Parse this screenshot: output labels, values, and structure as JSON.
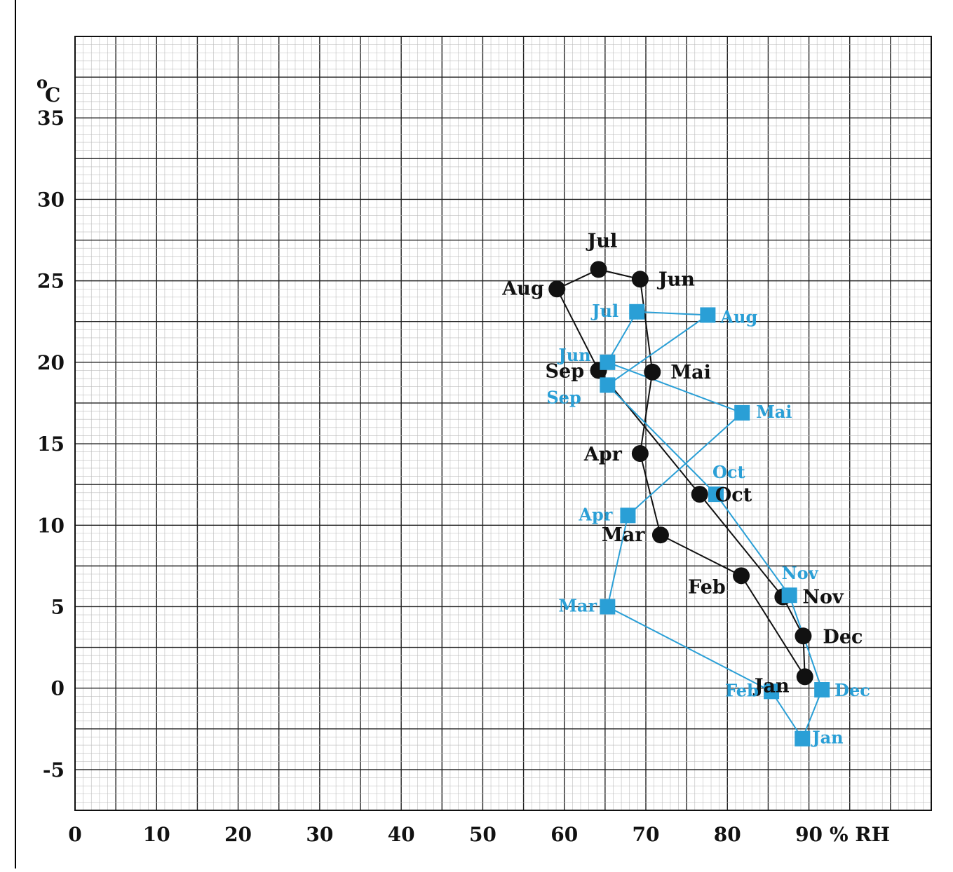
{
  "chart_data": {
    "type": "scatter",
    "title": "",
    "xlabel": "% RH",
    "ylabel": "°C",
    "ylabel_parts": {
      "degree": "o",
      "unit": "C"
    },
    "xlim": [
      0,
      105
    ],
    "ylim": [
      -7.5,
      40
    ],
    "xticks": [
      0,
      10,
      20,
      30,
      40,
      50,
      60,
      70,
      80,
      90
    ],
    "yticks": [
      -5,
      0,
      5,
      10,
      15,
      20,
      25,
      30,
      35
    ],
    "grid": true,
    "legend": "none",
    "series": [
      {
        "color": "#111111",
        "marker": "circle",
        "points": [
          {
            "label": "Jan",
            "x": 89.5,
            "y": 0.7
          },
          {
            "label": "Feb",
            "x": 81.7,
            "y": 6.9
          },
          {
            "label": "Mar",
            "x": 71.8,
            "y": 9.4
          },
          {
            "label": "Apr",
            "x": 69.3,
            "y": 14.4
          },
          {
            "label": "Mai",
            "x": 70.8,
            "y": 19.4
          },
          {
            "label": "Jun",
            "x": 69.3,
            "y": 25.1
          },
          {
            "label": "Jul",
            "x": 64.2,
            "y": 25.7
          },
          {
            "label": "Aug",
            "x": 59.1,
            "y": 24.5
          },
          {
            "label": "Sep",
            "x": 64.2,
            "y": 19.5
          },
          {
            "label": "Oct",
            "x": 76.6,
            "y": 11.9
          },
          {
            "label": "Nov",
            "x": 86.8,
            "y": 5.6
          },
          {
            "label": "Dec",
            "x": 89.3,
            "y": 3.2
          }
        ]
      },
      {
        "color": "#2a9fd6",
        "marker": "square",
        "points": [
          {
            "label": "Jan",
            "x": 89.2,
            "y": -3.1
          },
          {
            "label": "Feb",
            "x": 85.4,
            "y": -0.2
          },
          {
            "label": "Mar",
            "x": 65.3,
            "y": 5.0
          },
          {
            "label": "Apr",
            "x": 67.8,
            "y": 10.6
          },
          {
            "label": "Mai",
            "x": 81.8,
            "y": 16.9
          },
          {
            "label": "Jun",
            "x": 65.3,
            "y": 20.0
          },
          {
            "label": "Jul",
            "x": 68.9,
            "y": 23.1
          },
          {
            "label": "Aug",
            "x": 77.6,
            "y": 22.9
          },
          {
            "label": "Sep",
            "x": 65.3,
            "y": 18.6
          },
          {
            "label": "Oct",
            "x": 78.6,
            "y": 11.9
          },
          {
            "label": "Nov",
            "x": 87.6,
            "y": 5.7
          },
          {
            "label": "Dec",
            "x": 91.6,
            "y": -0.1
          }
        ]
      }
    ]
  }
}
